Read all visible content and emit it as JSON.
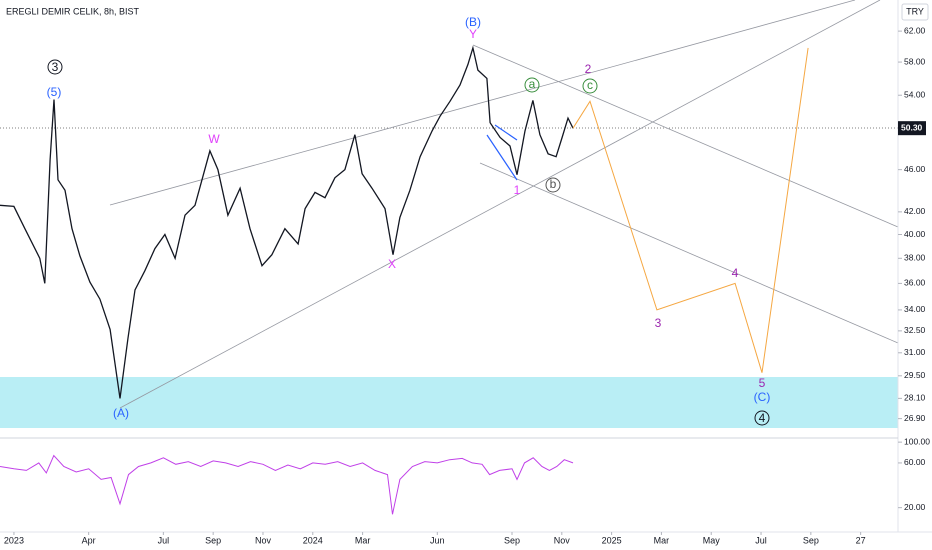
{
  "chart_data": [
    {
      "type": "line",
      "title": "EREGLI DEMIR CELIK, 8h, BIST",
      "currency": "TRY",
      "log_scale": true,
      "xlim": [
        -0.56,
        35.5
      ],
      "xticks": [
        {
          "value": 0,
          "label": "2023"
        },
        {
          "value": 3,
          "label": "Apr"
        },
        {
          "value": 6,
          "label": "Jul"
        },
        {
          "value": 8,
          "label": "Sep"
        },
        {
          "value": 10,
          "label": "Nov"
        },
        {
          "value": 12,
          "label": "2024"
        },
        {
          "value": 14,
          "label": "Mar"
        },
        {
          "value": 17,
          "label": "Jun"
        },
        {
          "value": 20,
          "label": "Sep"
        },
        {
          "value": 22,
          "label": "Nov"
        },
        {
          "value": 24,
          "label": "2025"
        },
        {
          "value": 26,
          "label": "Mar"
        },
        {
          "value": 28,
          "label": "May"
        },
        {
          "value": 30,
          "label": "Jul"
        },
        {
          "value": 32,
          "label": "Sep"
        },
        {
          "value": 34,
          "label": "27"
        }
      ],
      "ylim": [
        25.8,
        66.3
      ],
      "yticks": [
        {
          "value": 62,
          "label": "62.00"
        },
        {
          "value": 58,
          "label": "58.00"
        },
        {
          "value": 54,
          "label": "54.00"
        },
        {
          "value": 46,
          "label": "46.00"
        },
        {
          "value": 42,
          "label": "42.00"
        },
        {
          "value": 40,
          "label": "40.00"
        },
        {
          "value": 38,
          "label": "38.00"
        },
        {
          "value": 36,
          "label": "36.00"
        },
        {
          "value": 34,
          "label": "34.00"
        },
        {
          "value": 32.5,
          "label": "32.50"
        },
        {
          "value": 31,
          "label": "31.00"
        },
        {
          "value": 29.5,
          "label": "29.50"
        },
        {
          "value": 28.1,
          "label": "28.10"
        },
        {
          "value": 26.9,
          "label": "26.90"
        }
      ],
      "last_price": {
        "value": 50.3,
        "label": "50.30"
      },
      "series": [
        {
          "color": "#131722",
          "x": [
            -0.56,
            0,
            0.44,
            1.04,
            1.24,
            1.45,
            1.61,
            1.77,
            2.05,
            2.33,
            2.65,
            3.05,
            3.45,
            3.86,
            4.26,
            4.58,
            4.86,
            5.26,
            5.66,
            6.06,
            6.47,
            6.87,
            7.27,
            7.87,
            8.19,
            8.59,
            9.08,
            9.48,
            9.96,
            10.36,
            10.88,
            11.41,
            11.69,
            12.09,
            12.49,
            12.89,
            13.29,
            13.69,
            13.98,
            14.38,
            14.9,
            15.22,
            15.5,
            15.9,
            16.31,
            16.79,
            17.11,
            17.51,
            17.91,
            18.23,
            18.43,
            18.63,
            18.99,
            19.12,
            19.52,
            19.92,
            20.2,
            20.52,
            20.84,
            21.12,
            21.45,
            21.77,
            22.01,
            22.25,
            22.45
          ],
          "values": [
            42.6,
            42.5,
            40.5,
            38,
            36,
            47,
            53.5,
            45,
            44,
            40.5,
            38.2,
            36.1,
            34.8,
            32.6,
            28.1,
            32,
            35.5,
            37,
            38.8,
            40,
            38,
            41.7,
            42.6,
            47.9,
            46,
            41.7,
            44.2,
            40.5,
            37.4,
            38.3,
            40.5,
            39.2,
            42.3,
            43.8,
            43.3,
            45.2,
            46,
            49.6,
            45.6,
            44.2,
            42.3,
            38.3,
            41.5,
            44,
            47.3,
            50,
            51.6,
            53.3,
            55.2,
            57.7,
            59.8,
            57,
            56,
            50.9,
            49.3,
            48.4,
            45.5,
            50,
            53.4,
            49.6,
            47.6,
            47.3,
            49.3,
            51.4,
            50.3
          ]
        },
        {
          "color": "#f5a742",
          "x": [
            22.45,
            23.13,
            25.82,
            28.96,
            30.04,
            31.89
          ],
          "values": [
            50.3,
            53.3,
            34,
            36,
            29.7,
            59.8
          ]
        }
      ],
      "annotations": [
        "3",
        "(5)",
        "W",
        "X",
        "(B)",
        "Y",
        "a",
        "b",
        "c",
        "2",
        "1",
        "3",
        "4",
        "5",
        "(C)",
        "4",
        "(A)"
      ]
    },
    {
      "type": "line",
      "log_scale": true,
      "ylim": [
        11,
        108
      ],
      "yticks": [
        {
          "value": 100,
          "label": "100.00"
        },
        {
          "value": 60,
          "label": "60.00"
        },
        {
          "value": 20,
          "label": "20.00"
        }
      ],
      "series": [
        {
          "color": "#c040e8",
          "x": [
            -0.56,
            0,
            0.5,
            1,
            1.3,
            1.6,
            2,
            2.5,
            3,
            3.5,
            3.9,
            4.26,
            4.6,
            5,
            5.5,
            6,
            6.5,
            7,
            7.5,
            8,
            8.5,
            9,
            9.5,
            10,
            10.5,
            11,
            11.5,
            12,
            12.5,
            13,
            13.5,
            14,
            14.5,
            15,
            15.2,
            15.5,
            16,
            16.5,
            17,
            17.5,
            18,
            18.4,
            18.8,
            19.1,
            19.5,
            20,
            20.2,
            20.5,
            20.85,
            21.2,
            21.5,
            21.8,
            22.1,
            22.45
          ],
          "values": [
            55,
            52,
            50,
            60,
            47,
            72,
            55,
            48,
            52,
            40,
            42,
            22,
            45,
            55,
            60,
            68,
            58,
            62,
            55,
            63,
            60,
            55,
            62,
            58,
            50,
            57,
            52,
            60,
            58,
            62,
            55,
            60,
            50,
            45,
            17,
            40,
            55,
            62,
            60,
            65,
            67,
            60,
            58,
            45,
            50,
            52,
            40,
            60,
            68,
            55,
            50,
            55,
            65,
            60
          ]
        }
      ]
    }
  ]
}
